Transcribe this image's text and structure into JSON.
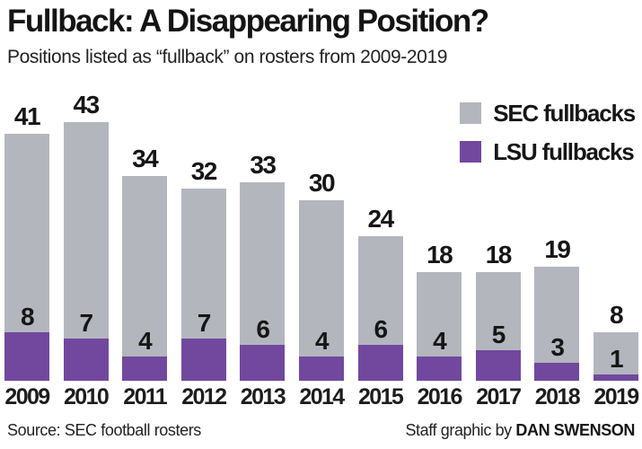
{
  "header": {
    "title": "Fullback: A Disappearing Position?",
    "subtitle": "Positions listed as “fullback” on rosters from 2009-2019"
  },
  "legend": [
    {
      "label": "SEC fullbacks",
      "color": "#b4b6bd"
    },
    {
      "label": "LSU fullbacks",
      "color": "#71489e"
    }
  ],
  "chart_data": {
    "type": "bar",
    "subtype": "overlay",
    "note": "Purple LSU segment is drawn at the bottom of the gray SEC total bar; total bar height equals the SEC value.",
    "categories": [
      "2009",
      "2010",
      "2011",
      "2012",
      "2013",
      "2014",
      "2015",
      "2016",
      "2017",
      "2018",
      "2019"
    ],
    "series": [
      {
        "name": "SEC fullbacks",
        "color": "#b4b6bd",
        "values": [
          41,
          43,
          34,
          32,
          33,
          30,
          24,
          18,
          18,
          19,
          8
        ]
      },
      {
        "name": "LSU fullbacks",
        "color": "#71489e",
        "values": [
          8,
          7,
          4,
          7,
          6,
          4,
          6,
          4,
          5,
          3,
          1
        ]
      }
    ],
    "title": "Fullback: A Disappearing Position?",
    "xlabel": "",
    "ylabel": "",
    "ylim": [
      0,
      45
    ],
    "grid": false,
    "axes_shown": false,
    "data_labels": "above segments",
    "legend_position": "top-right"
  },
  "footer": {
    "source": "Source: SEC football rosters",
    "credit_prefix": "Staff graphic by ",
    "credit_name": "DAN SWENSON"
  }
}
